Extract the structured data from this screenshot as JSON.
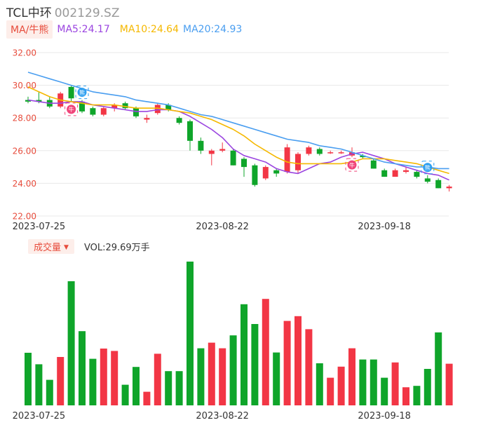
{
  "header": {
    "name": "TCL中环",
    "code": "002129.SZ"
  },
  "indicators": {
    "ma_label": "MA/牛熊",
    "ma5": "MA5:24.17",
    "ma10": "MA10:24.64",
    "ma20": "MA20:24.93"
  },
  "volume_header": {
    "label": "成交量",
    "arrow": "▼",
    "value": "VOL:29.69万手"
  },
  "colors": {
    "up": "#f23645",
    "down": "#0fa52a",
    "ma5": "#9b45e0",
    "ma10": "#f5b800",
    "ma20": "#4a9ef0",
    "grid": "#e8e8e8",
    "axis_text": "#e74c3c"
  },
  "markers": [
    {
      "label": "牛",
      "type": "bull",
      "index": 4
    },
    {
      "label": "熊",
      "type": "bear",
      "index": 5
    },
    {
      "label": "牛",
      "type": "bull",
      "index": 30
    },
    {
      "label": "熊",
      "type": "bear",
      "index": 37
    }
  ],
  "chart_data": [
    {
      "type": "candlestick",
      "y_ticks": [
        "32.00",
        "30.00",
        "28.00",
        "26.00",
        "24.00",
        "22.00"
      ],
      "ylim": [
        22,
        32
      ],
      "x_tick_labels": [
        {
          "index": 1,
          "label": "2023-07-25"
        },
        {
          "index": 18,
          "label": "2023-08-22"
        },
        {
          "index": 33,
          "label": "2023-09-18"
        }
      ],
      "candles": [
        {
          "o": 29.1,
          "h": 29.3,
          "l": 28.9,
          "c": 29.0
        },
        {
          "o": 29.1,
          "h": 29.6,
          "l": 28.9,
          "c": 29.0
        },
        {
          "o": 29.1,
          "h": 29.3,
          "l": 28.6,
          "c": 28.7
        },
        {
          "o": 28.7,
          "h": 29.6,
          "l": 28.6,
          "c": 29.5
        },
        {
          "o": 29.9,
          "h": 30.0,
          "l": 29.0,
          "c": 29.2
        },
        {
          "o": 29.0,
          "h": 29.1,
          "l": 28.3,
          "c": 28.4
        },
        {
          "o": 28.6,
          "h": 28.7,
          "l": 28.1,
          "c": 28.2
        },
        {
          "o": 28.2,
          "h": 28.7,
          "l": 28.1,
          "c": 28.6
        },
        {
          "o": 28.6,
          "h": 28.9,
          "l": 28.4,
          "c": 28.8
        },
        {
          "o": 28.9,
          "h": 29.0,
          "l": 28.5,
          "c": 28.6
        },
        {
          "o": 28.6,
          "h": 28.7,
          "l": 28.0,
          "c": 28.1
        },
        {
          "o": 27.9,
          "h": 28.2,
          "l": 27.7,
          "c": 28.0
        },
        {
          "o": 28.3,
          "h": 28.9,
          "l": 28.2,
          "c": 28.8
        },
        {
          "o": 28.8,
          "h": 28.9,
          "l": 28.4,
          "c": 28.5
        },
        {
          "o": 28.0,
          "h": 28.1,
          "l": 27.6,
          "c": 27.7
        },
        {
          "o": 27.8,
          "h": 27.9,
          "l": 26.0,
          "c": 26.6
        },
        {
          "o": 26.6,
          "h": 26.8,
          "l": 25.8,
          "c": 26.0
        },
        {
          "o": 25.8,
          "h": 26.1,
          "l": 25.1,
          "c": 26.0
        },
        {
          "o": 26.0,
          "h": 26.5,
          "l": 25.9,
          "c": 26.1
        },
        {
          "o": 26.0,
          "h": 26.1,
          "l": 25.1,
          "c": 25.1
        },
        {
          "o": 25.5,
          "h": 25.6,
          "l": 24.4,
          "c": 25.0
        },
        {
          "o": 25.1,
          "h": 25.2,
          "l": 23.8,
          "c": 23.9
        },
        {
          "o": 24.3,
          "h": 25.1,
          "l": 24.2,
          "c": 25.0
        },
        {
          "o": 24.8,
          "h": 24.9,
          "l": 24.4,
          "c": 24.6
        },
        {
          "o": 24.7,
          "h": 26.4,
          "l": 24.6,
          "c": 26.2
        },
        {
          "o": 24.8,
          "h": 25.9,
          "l": 24.6,
          "c": 25.8
        },
        {
          "o": 25.8,
          "h": 26.3,
          "l": 25.7,
          "c": 26.2
        },
        {
          "o": 26.1,
          "h": 26.2,
          "l": 25.7,
          "c": 25.8
        },
        {
          "o": 25.9,
          "h": 26.0,
          "l": 25.8,
          "c": 25.9
        },
        {
          "o": 25.9,
          "h": 26.0,
          "l": 25.8,
          "c": 25.9
        },
        {
          "o": 25.7,
          "h": 26.2,
          "l": 25.6,
          "c": 25.9
        },
        {
          "o": 25.7,
          "h": 25.8,
          "l": 25.5,
          "c": 25.6
        },
        {
          "o": 25.4,
          "h": 25.5,
          "l": 24.9,
          "c": 24.9
        },
        {
          "o": 24.8,
          "h": 24.9,
          "l": 24.4,
          "c": 24.4
        },
        {
          "o": 24.4,
          "h": 24.9,
          "l": 24.4,
          "c": 24.8
        },
        {
          "o": 24.7,
          "h": 25.0,
          "l": 24.6,
          "c": 24.8
        },
        {
          "o": 24.7,
          "h": 24.8,
          "l": 24.3,
          "c": 24.4
        },
        {
          "o": 24.3,
          "h": 24.5,
          "l": 24.0,
          "c": 24.1
        },
        {
          "o": 24.2,
          "h": 24.3,
          "l": 23.7,
          "c": 23.7
        },
        {
          "o": 23.7,
          "h": 23.9,
          "l": 23.5,
          "c": 23.8
        }
      ],
      "series": [
        {
          "name": "MA5",
          "values": [
            29.1,
            29.0,
            28.9,
            28.9,
            29.0,
            29.0,
            28.8,
            28.7,
            28.6,
            28.5,
            28.4,
            28.4,
            28.5,
            28.5,
            28.4,
            28.1,
            27.7,
            27.3,
            26.8,
            26.1,
            25.7,
            25.5,
            25.3,
            24.9,
            24.7,
            24.6,
            24.9,
            25.2,
            25.3,
            25.6,
            25.8,
            25.9,
            25.7,
            25.5,
            25.2,
            25.0,
            24.8,
            24.6,
            24.5,
            24.2
          ]
        },
        {
          "name": "MA10",
          "values": [
            29.9,
            29.6,
            29.3,
            29.1,
            29.0,
            28.9,
            28.8,
            28.8,
            28.8,
            28.7,
            28.6,
            28.6,
            28.6,
            28.5,
            28.4,
            28.3,
            28.1,
            27.9,
            27.6,
            27.3,
            26.9,
            26.4,
            26.0,
            25.6,
            25.3,
            25.2,
            25.2,
            25.2,
            25.2,
            25.2,
            25.3,
            25.5,
            25.5,
            25.5,
            25.4,
            25.3,
            25.2,
            25.0,
            24.8,
            24.6
          ]
        },
        {
          "name": "MA20",
          "values": [
            30.8,
            30.6,
            30.4,
            30.2,
            30.0,
            29.8,
            29.6,
            29.5,
            29.4,
            29.3,
            29.1,
            29.0,
            28.9,
            28.8,
            28.6,
            28.4,
            28.2,
            28.1,
            27.9,
            27.7,
            27.5,
            27.3,
            27.1,
            26.9,
            26.7,
            26.6,
            26.5,
            26.3,
            26.2,
            26.1,
            25.9,
            25.7,
            25.5,
            25.3,
            25.2,
            25.1,
            25.0,
            25.0,
            24.9,
            24.9
          ]
        }
      ]
    },
    {
      "type": "bar",
      "name": "volume",
      "unit": "万手",
      "x_tick_labels": [
        {
          "index": 1,
          "label": "2023-07-25"
        },
        {
          "index": 18,
          "label": "2023-08-22"
        },
        {
          "index": 33,
          "label": "2023-09-18"
        }
      ],
      "values": [
        37.5,
        29.3,
        18.2,
        34.5,
        88.5,
        52.9,
        33.2,
        40.5,
        38.8,
        14.7,
        27.4,
        9.7,
        36.8,
        24.4,
        24.4,
        102.5,
        40.7,
        44.7,
        40.7,
        49.9,
        72.1,
        58.0,
        75.9,
        37.7,
        60.2,
        63.6,
        54.3,
        30.0,
        19.7,
        27.6,
        40.7,
        32.7,
        32.7,
        19.7,
        30.6,
        12.9,
        13.9,
        26.0,
        52.0,
        29.69
      ]
    }
  ]
}
